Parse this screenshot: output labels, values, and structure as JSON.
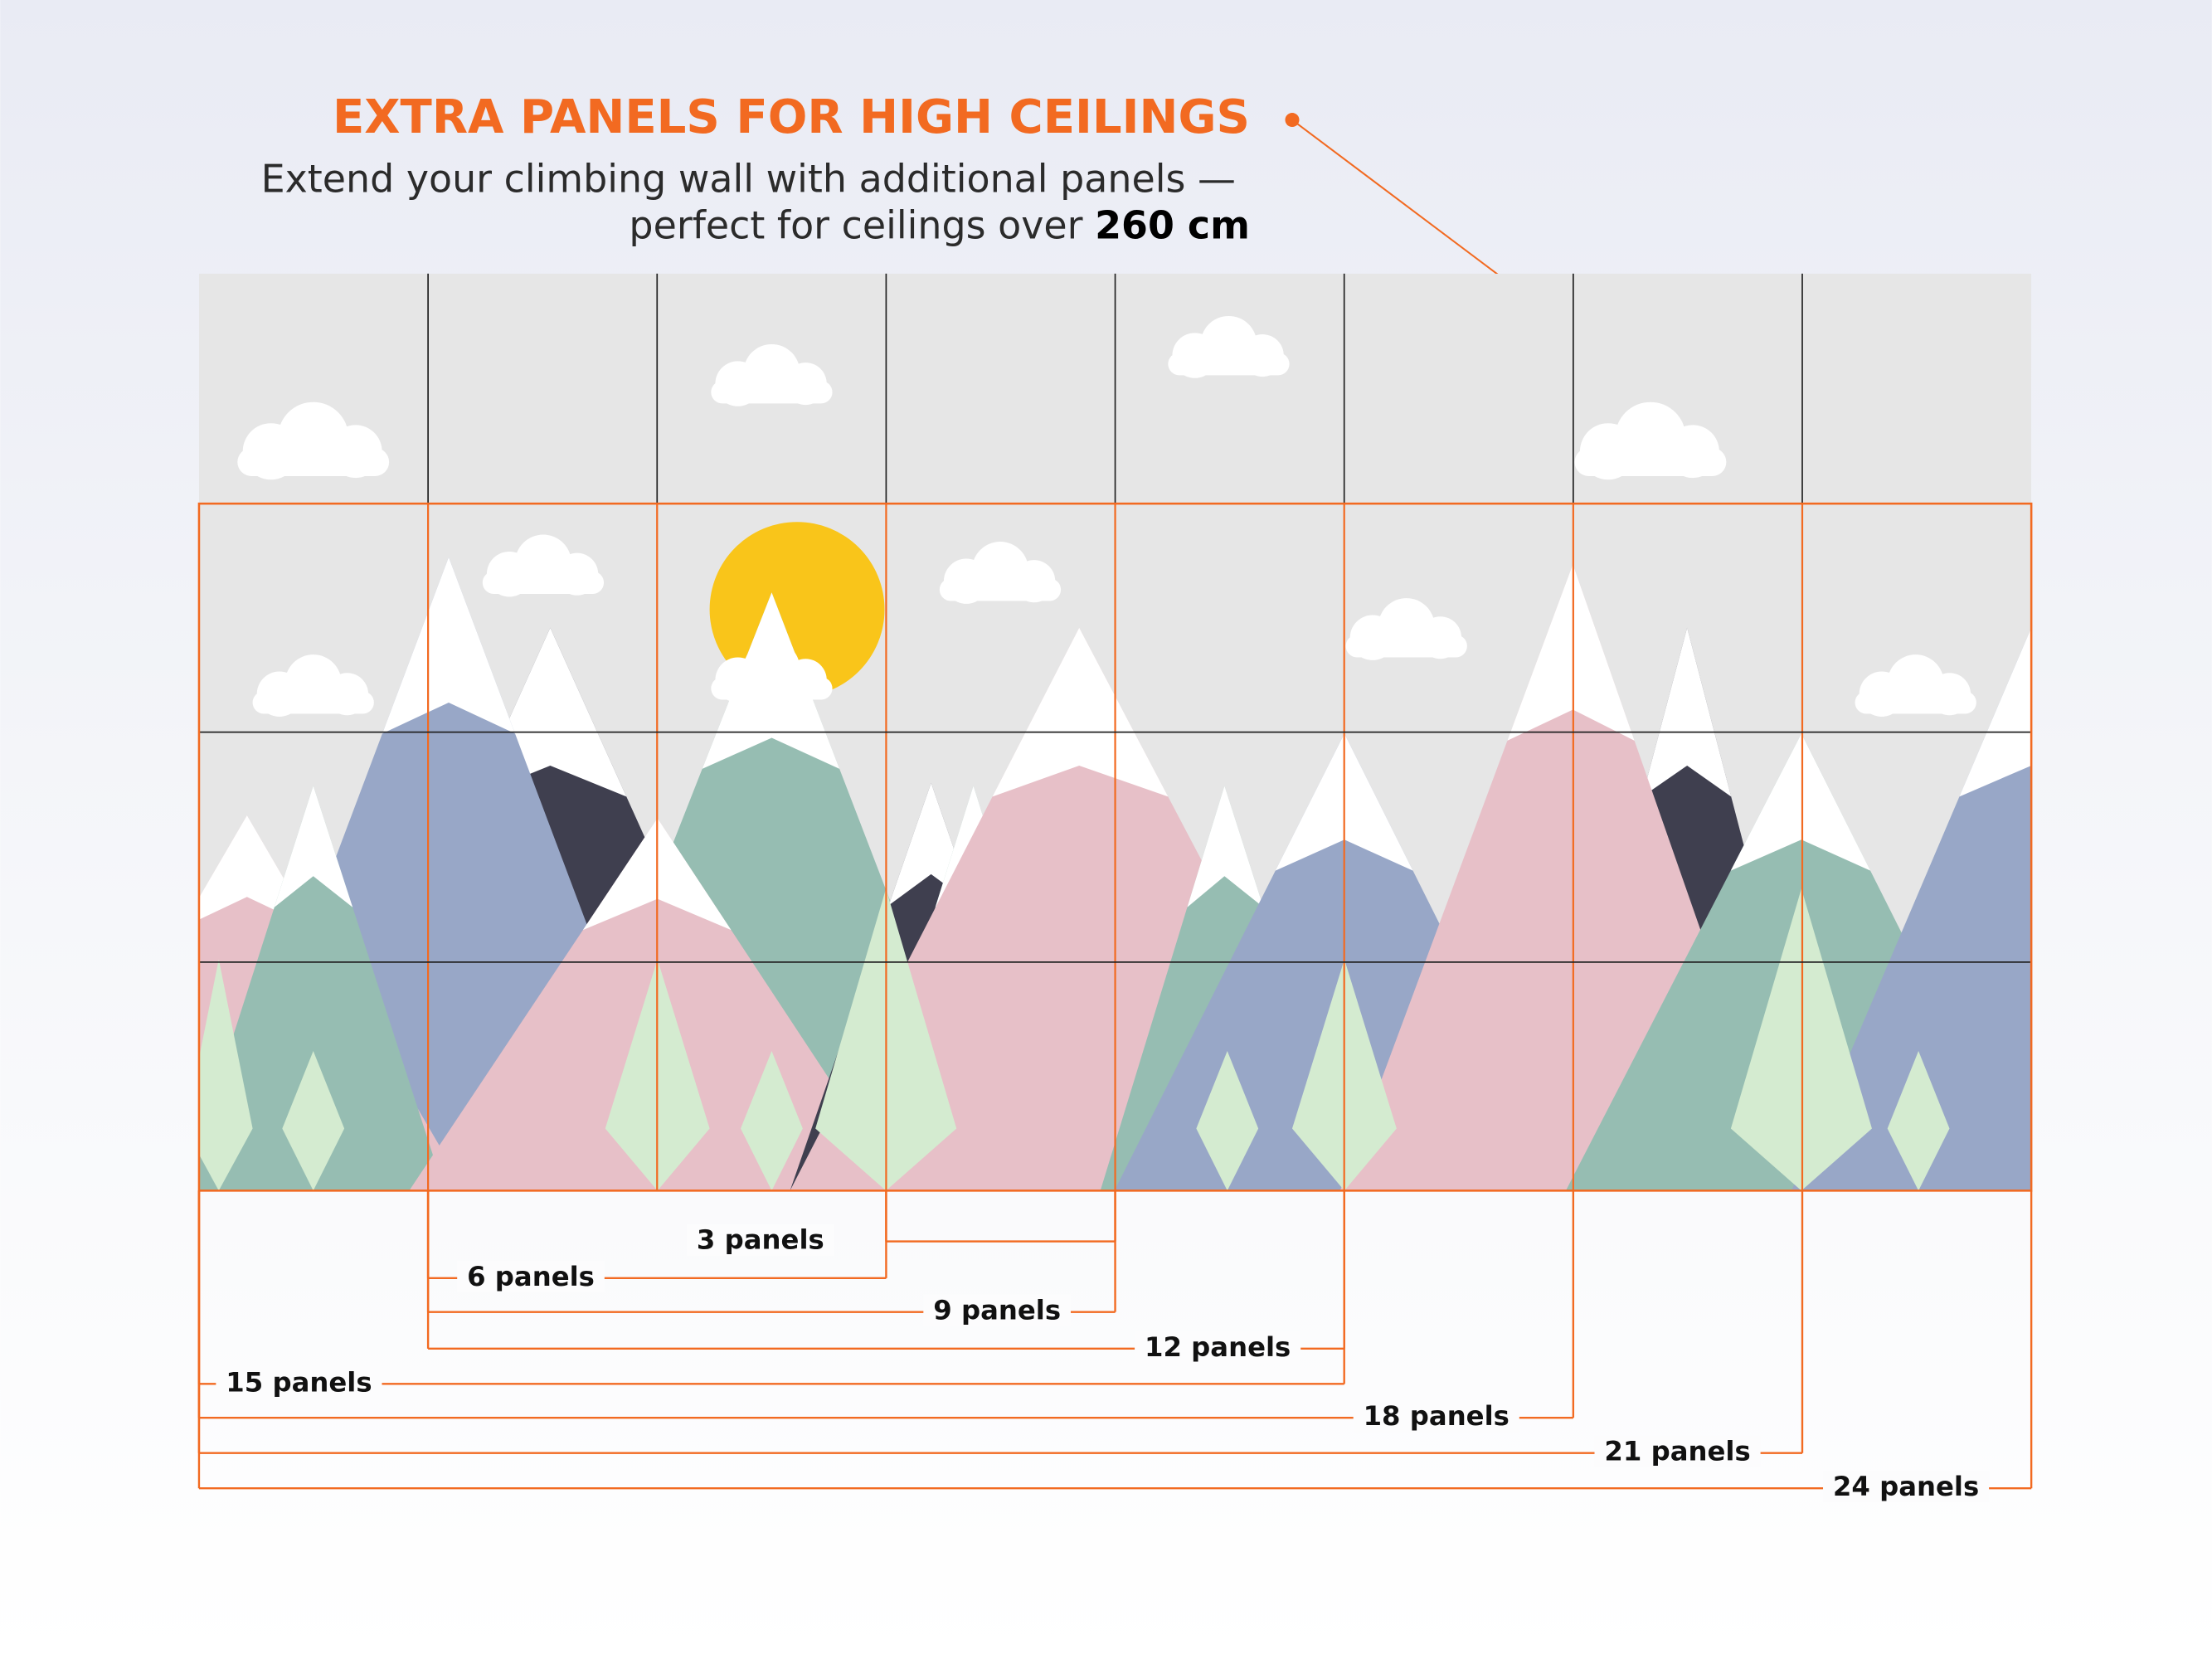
{
  "header": {
    "title": "EXTRA PANELS FOR HIGH CEILINGS",
    "subtitle_line1": "Extend your climbing wall with additional panels —",
    "subtitle_line2": "perfect for ceilings over",
    "subtitle_bold": "260 cm"
  },
  "brackets": [
    {
      "label": "3 panels"
    },
    {
      "label": "6 panels"
    },
    {
      "label": "9 panels"
    },
    {
      "label": "12 panels"
    },
    {
      "label": "15 panels"
    },
    {
      "label": "18 panels"
    },
    {
      "label": "21 panels"
    },
    {
      "label": "24 panels"
    }
  ]
}
